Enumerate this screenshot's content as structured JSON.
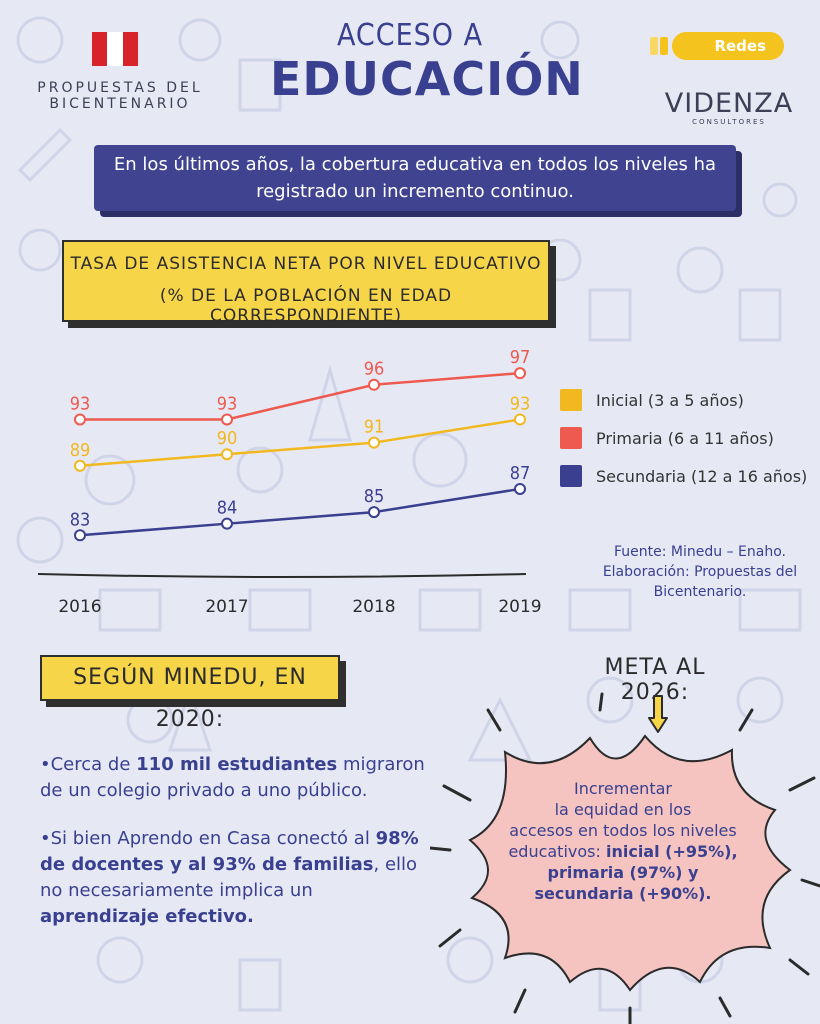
{
  "header": {
    "brand_line1": "PROPUESTAS DEL",
    "brand_line2": "BICENTENARIO",
    "title_top": "ACCESO A",
    "title_main": "EDUCACIÓN",
    "badge": "Redes",
    "partner": "VIDENZA",
    "partner_sub": "CONSULTORES"
  },
  "intro": "En los últimos años, la cobertura educativa en todos los niveles ha registrado un incremento continuo.",
  "chart_data": {
    "type": "line",
    "title_line1": "TASA DE ASISTENCIA NETA POR NIVEL EDUCATIVO",
    "title_line2": "(% DE LA POBLACIÓN EN EDAD CORRESPONDIENTE)",
    "x": [
      "2016",
      "2017",
      "2018",
      "2019"
    ],
    "series": [
      {
        "name": "Inicial (3 a 5 años)",
        "color": "#f2b81f",
        "values": [
          89,
          90,
          91,
          93
        ]
      },
      {
        "name": "Primaria (6 a 11 años)",
        "color": "#ee5a4f",
        "values": [
          93,
          93,
          96,
          97
        ]
      },
      {
        "name": "Secundaria (12 a 16 años)",
        "color": "#3b3f8f",
        "values": [
          83,
          84,
          85,
          87
        ]
      }
    ],
    "ylim": [
      80,
      99
    ],
    "legend": "right",
    "grid": false
  },
  "source": {
    "line1": "Fuente: Minedu – Enaho.",
    "line2": "Elaboración: Propuestas del",
    "line3": "Bicentenario."
  },
  "minedu": {
    "title": "SEGÚN MINEDU, EN 2020:",
    "b1_prefix": "•Cerca de ",
    "b1_bold": "110 mil estudiantes",
    "b1_rest": " migraron de un colegio privado a uno público.",
    "b2_prefix": "•Si bien Aprendo en Casa conectó al ",
    "b2_bold": "98% de docentes y al 93% de familias",
    "b2_mid": ", ello no necesariamente implica un ",
    "b2_bold2": "aprendizaje efectivo."
  },
  "meta": {
    "title": "META AL 2026:",
    "l1": "Incrementar",
    "l2": "la equidad en los",
    "l3": "accesos en todos los niveles",
    "l4_prefix": "educativos: ",
    "l4_bold": "inicial (+95%),",
    "l5_bold": "primaria (97%) y",
    "l6_bold": "secundaria (+90%)."
  },
  "colors": {
    "accent": "#3f4390",
    "yellow": "#f7d548",
    "background": "#e6e9f4",
    "burst": "#f5c4c1"
  }
}
